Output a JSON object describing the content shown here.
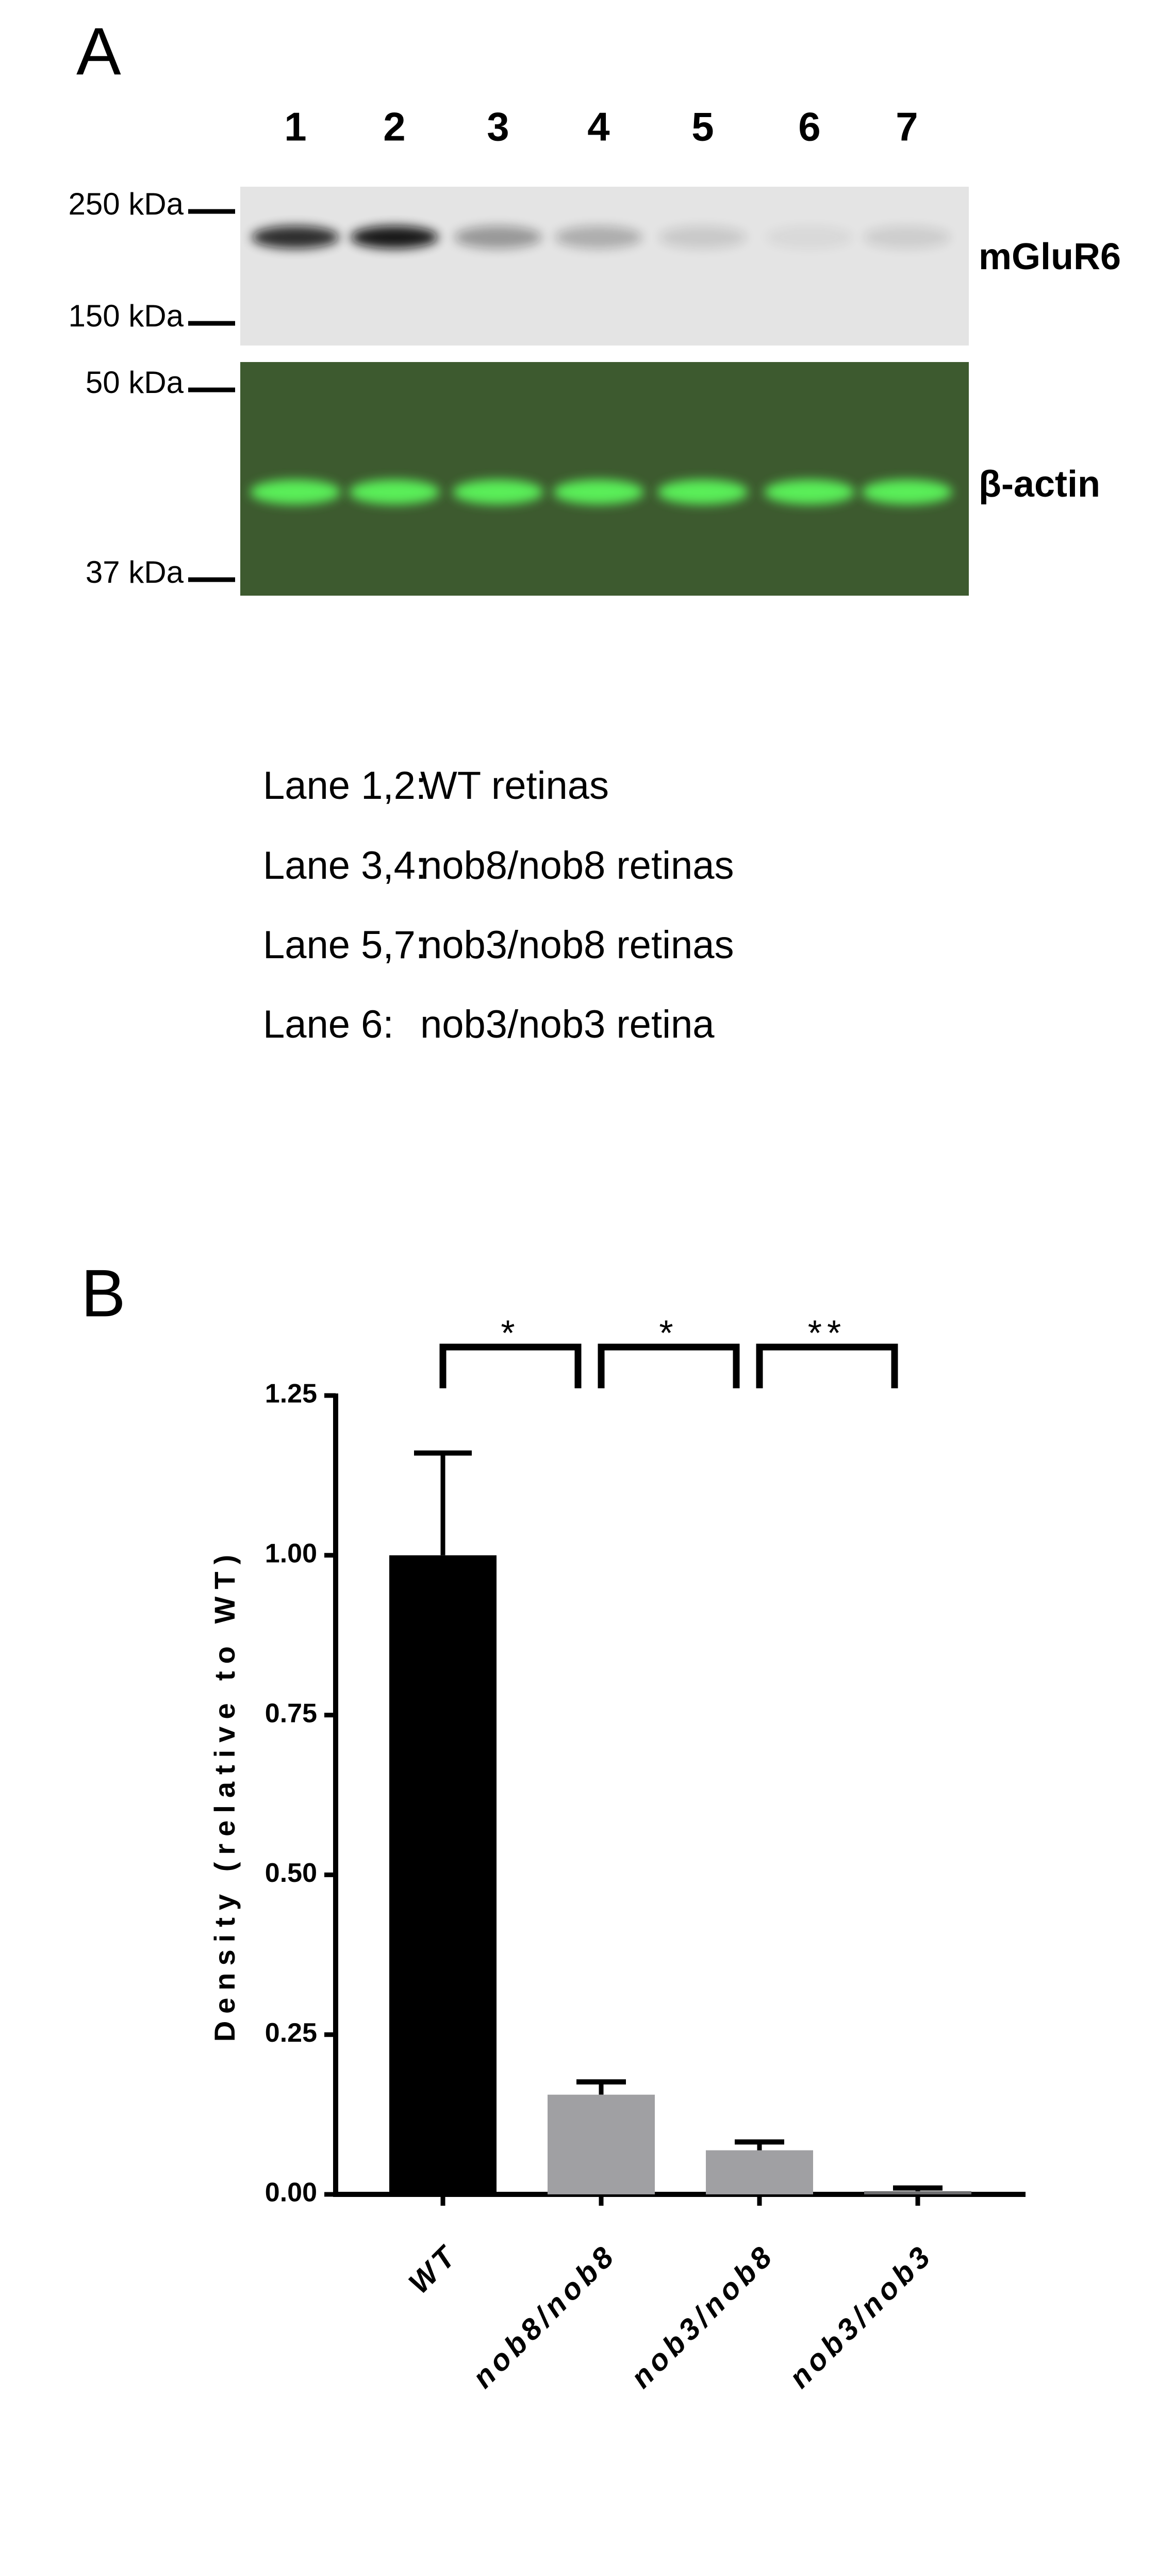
{
  "panel_a": {
    "label": "A",
    "lanes": [
      "1",
      "2",
      "3",
      "4",
      "5",
      "6",
      "7"
    ],
    "markers": [
      "250 kDa",
      "150 kDa",
      "50 kDa",
      "37 kDa"
    ],
    "blots": [
      "mGluR6",
      "β-actin"
    ],
    "legend": [
      [
        "Lane 1,2:",
        "WT retinas"
      ],
      [
        "Lane 3,4:",
        "nob8/nob8 retinas"
      ],
      [
        "Lane 5,7:",
        "nob3/nob8 retinas"
      ],
      [
        "Lane 6:",
        "nob3/nob3 retina"
      ]
    ]
  },
  "chart_data": {
    "type": "bar",
    "panel_label": "B",
    "ylabel": "Density (relative to WT)",
    "categories": [
      "WT",
      "nob8/nob8",
      "nob3/nob8",
      "nob3/nob3"
    ],
    "values": [
      1.0,
      0.156,
      0.069,
      0.005
    ],
    "errors": [
      0.16,
      0.02,
      0.013,
      0.005
    ],
    "colors": [
      "#000000",
      "#a0a0a3",
      "#a0a0a3",
      "#6e6e70"
    ],
    "ylim": [
      0,
      1.25
    ],
    "yticks": [
      {
        "value": 0,
        "label": "0.00"
      },
      {
        "value": 0.25,
        "label": "0.25"
      },
      {
        "value": 0.5,
        "label": "0.50"
      },
      {
        "value": 0.75,
        "label": "0.75"
      },
      {
        "value": 1,
        "label": "1.00"
      },
      {
        "value": 1.25,
        "label": "1.25"
      }
    ],
    "annotations": [
      "*",
      "*",
      "**"
    ]
  }
}
